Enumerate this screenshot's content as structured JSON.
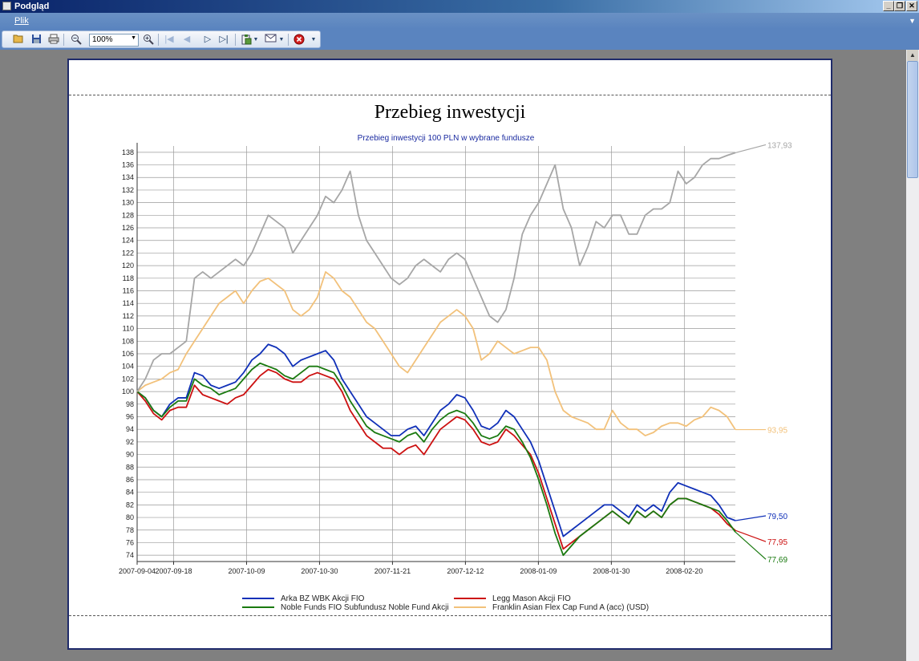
{
  "window": {
    "title": "Podgląd",
    "buttons": {
      "minimize": "_",
      "restore": "❐",
      "close": "✕"
    }
  },
  "menu": {
    "file": "Plik",
    "overflow": "▼"
  },
  "toolbar": {
    "zoom_value": "100%",
    "icons": [
      "open-icon",
      "save-icon",
      "print-icon",
      "zoom-out-icon",
      "zoom-in-icon",
      "first-page-icon",
      "prev-page-icon",
      "next-page-icon",
      "last-page-icon",
      "export-icon",
      "email-icon",
      "close-preview-icon"
    ]
  },
  "document": {
    "title": "Przebieg inwestycji"
  },
  "chart_data": {
    "type": "line",
    "subtitle": "Przebieg inwestycji 100 PLN w wybrane fundusze",
    "ylim": [
      73,
      139
    ],
    "y_ticks": [
      74,
      76,
      78,
      80,
      82,
      84,
      86,
      88,
      90,
      92,
      94,
      96,
      98,
      100,
      102,
      104,
      106,
      108,
      110,
      112,
      114,
      116,
      118,
      120,
      122,
      124,
      126,
      128,
      130,
      132,
      134,
      136,
      138
    ],
    "x_tick_labels": [
      "2007-09-04",
      "2007-09-18",
      "2007-10-09",
      "2007-10-30",
      "2007-11-21",
      "2007-12-12",
      "2008-01-09",
      "2008-01-30",
      "2008-02-20"
    ],
    "x_tick_pos": [
      0,
      5,
      15,
      25,
      35,
      45,
      55,
      65,
      75
    ],
    "x_max": 82,
    "grid": true,
    "series": [
      {
        "name": "Arka BZ WBK Akcji FIO",
        "color": "#1030b8",
        "end_label": "79,50",
        "values": [
          100,
          99,
          97,
          96,
          98,
          99,
          99,
          103,
          102.5,
          101,
          100.5,
          101,
          101.5,
          103,
          105,
          106,
          107.5,
          107,
          106,
          104,
          105,
          105.5,
          106,
          106.5,
          105,
          102,
          100,
          98,
          96,
          95,
          94,
          93,
          93,
          94,
          94.5,
          93,
          95,
          97,
          98,
          99.5,
          99,
          97,
          94.5,
          94,
          95,
          97,
          96,
          94,
          92,
          89,
          85,
          81,
          77,
          78,
          79,
          80,
          81,
          82,
          82,
          81,
          80,
          82,
          81,
          82,
          81,
          84,
          85.5,
          85,
          84.5,
          84,
          83.5,
          82,
          80,
          79.5
        ]
      },
      {
        "name": "Legg Mason Akcji FIO",
        "color": "#cc1010",
        "end_label": "77,95",
        "values": [
          100,
          98.5,
          96.5,
          95.5,
          97,
          97.5,
          97.5,
          101,
          99.5,
          99,
          98.5,
          98,
          99,
          99.5,
          101,
          102.5,
          103.5,
          103,
          102,
          101.5,
          101.5,
          102.5,
          103,
          102.5,
          102,
          100,
          97,
          95,
          93,
          92,
          91,
          91,
          90,
          91,
          91.5,
          90,
          92,
          94,
          95,
          96,
          95.5,
          94,
          92,
          91.5,
          92,
          94,
          93,
          91.5,
          90,
          87,
          83,
          79,
          75,
          76,
          77,
          78,
          79,
          80,
          81,
          80,
          79,
          81,
          80,
          81,
          80,
          82,
          83,
          83,
          82.5,
          82,
          81.5,
          80.5,
          79,
          77.95
        ]
      },
      {
        "name": "Noble Funds FIO Subfundusz Noble Fund Akcji",
        "color": "#1a7a10",
        "end_label": "77,69",
        "values": [
          100,
          99,
          97,
          96,
          97.5,
          98.5,
          98.5,
          102,
          101,
          100.5,
          99.5,
          100,
          100.5,
          102,
          103.5,
          104.5,
          104,
          103.5,
          102.5,
          102,
          103,
          104,
          104,
          103.5,
          103,
          101,
          98.5,
          96.5,
          94.5,
          93.5,
          93,
          92.5,
          92,
          93,
          93.5,
          92,
          94,
          95.5,
          96.5,
          97,
          96.5,
          95,
          93,
          92.5,
          93,
          94.5,
          94,
          92,
          89.5,
          86,
          82,
          77.5,
          74,
          75.5,
          77,
          78,
          79,
          80,
          81,
          80,
          79,
          81,
          80,
          81,
          80,
          82,
          83,
          83,
          82.5,
          82,
          81.5,
          81,
          79.5,
          77.69
        ]
      },
      {
        "name": "Franklin Asian Flex Cap Fund A (acc) (USD)",
        "color": "#f2c17a",
        "end_label": "93,95",
        "values": [
          100,
          101,
          101.5,
          102,
          103,
          103.5,
          106,
          108,
          110,
          112,
          114,
          115,
          116,
          114,
          116,
          117.5,
          118,
          117,
          116,
          113,
          112,
          113,
          115,
          119,
          118,
          116,
          115,
          113,
          111,
          110,
          108,
          106,
          104,
          103,
          105,
          107,
          109,
          111,
          112,
          113,
          112,
          110,
          105,
          106,
          108,
          107,
          106,
          106.5,
          107,
          107,
          105,
          100,
          97,
          96,
          95.5,
          95,
          94,
          94,
          97,
          95,
          94,
          94,
          93,
          93.5,
          94.5,
          95,
          95,
          94.5,
          95.5,
          96,
          97.5,
          97,
          96,
          93.95
        ]
      },
      {
        "name": "",
        "color": "#a6a6a6",
        "end_label": "137,93",
        "values": [
          100,
          102,
          105,
          106,
          106,
          107,
          108,
          118,
          119,
          118,
          119,
          120,
          121,
          120,
          122,
          125,
          128,
          127,
          126,
          122,
          124,
          126,
          128,
          131,
          130,
          132,
          135,
          128,
          124,
          122,
          120,
          118,
          117,
          118,
          120,
          121,
          120,
          119,
          121,
          122,
          121,
          118,
          115,
          112,
          111,
          113,
          118,
          125,
          128,
          130,
          133,
          136,
          129,
          126,
          120,
          123,
          127,
          126,
          128,
          128,
          125,
          125,
          128,
          129,
          129,
          130,
          135,
          133,
          134,
          136,
          137,
          137,
          137.5,
          137.93
        ]
      }
    ]
  }
}
